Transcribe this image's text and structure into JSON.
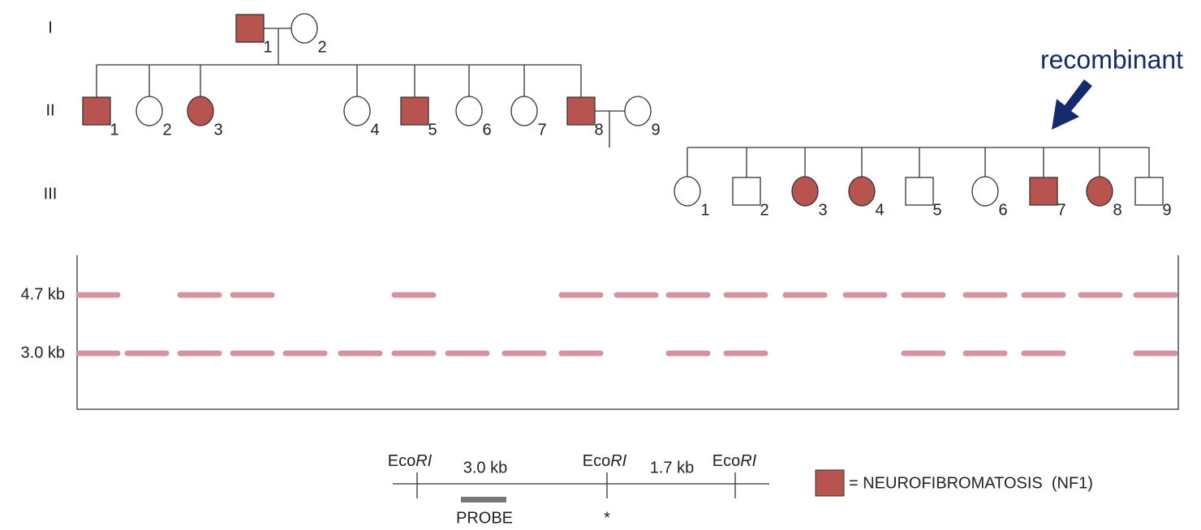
{
  "generations": [
    {
      "label": "I",
      "members": [
        "1",
        "2"
      ]
    },
    {
      "label": "II",
      "members": [
        "1",
        "2",
        "3",
        "4",
        "5",
        "6",
        "7",
        "8",
        "9"
      ]
    },
    {
      "label": "III",
      "members": [
        "1",
        "2",
        "3",
        "4",
        "5",
        "6",
        "7",
        "8",
        "9"
      ]
    }
  ],
  "annotation": "recombinant",
  "gel": {
    "size_labels": [
      "4.7 kb",
      "3.0 kb"
    ]
  },
  "restriction_map": {
    "sites": [
      {
        "prefix": "Eco",
        "italic": "RI"
      },
      {
        "prefix": "Eco",
        "italic": "RI"
      },
      {
        "prefix": "Eco",
        "italic": "RI"
      }
    ],
    "fragments": [
      "3.0 kb",
      "1.7 kb"
    ],
    "probe": "PROBE",
    "mark": "*"
  },
  "legend": "= NEUROFIBROMATOSIS  (NF1)"
}
